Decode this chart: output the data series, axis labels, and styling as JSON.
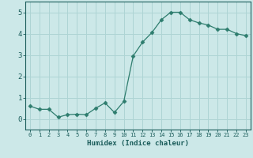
{
  "x": [
    0,
    1,
    2,
    3,
    4,
    5,
    6,
    7,
    8,
    9,
    10,
    11,
    12,
    13,
    14,
    15,
    16,
    17,
    18,
    19,
    20,
    21,
    22,
    23
  ],
  "y": [
    0.6,
    0.45,
    0.45,
    0.08,
    0.2,
    0.22,
    0.2,
    0.5,
    0.75,
    0.3,
    0.82,
    2.95,
    3.6,
    4.05,
    4.65,
    5.0,
    5.0,
    4.65,
    4.5,
    4.4,
    4.2,
    4.2,
    4.0,
    3.9
  ],
  "xlabel": "Humidex (Indice chaleur)",
  "line_color": "#2e7d6e",
  "marker": "D",
  "marker_size": 2.5,
  "bg_color": "#cce8e8",
  "grid_color": "#aed4d4",
  "text_color": "#1a5c5a",
  "xlim": [
    -0.5,
    23.5
  ],
  "ylim": [
    -0.5,
    5.5
  ],
  "yticks": [
    0,
    1,
    2,
    3,
    4,
    5
  ],
  "xticks": [
    0,
    1,
    2,
    3,
    4,
    5,
    6,
    7,
    8,
    9,
    10,
    11,
    12,
    13,
    14,
    15,
    16,
    17,
    18,
    19,
    20,
    21,
    22,
    23
  ]
}
